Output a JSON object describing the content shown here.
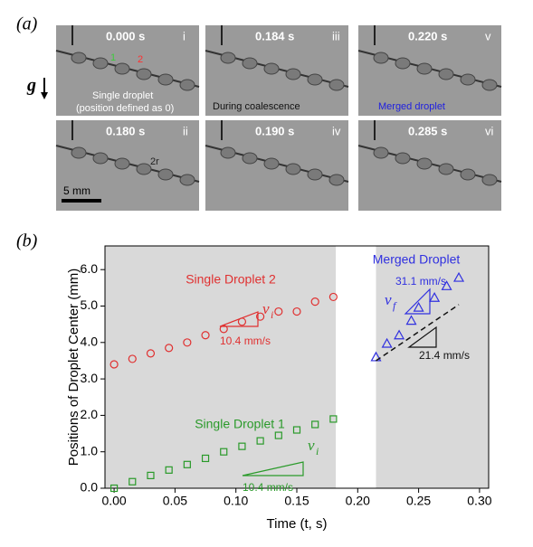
{
  "panel_a": {
    "label": "(a)",
    "gravity": "g",
    "scale_bar": "5 mm",
    "frames": [
      {
        "time": "0.000 s",
        "index": "i",
        "notes": [
          {
            "text": "1",
            "color": "#3ccc3c"
          },
          {
            "text": "2",
            "color": "#ff3030"
          },
          {
            "text": "Single droplet",
            "color": "#ffffff"
          },
          {
            "text": "(position defined as 0)",
            "color": "#ffffff"
          }
        ]
      },
      {
        "time": "0.184 s",
        "index": "iii",
        "notes": [
          {
            "text": "During coalescence",
            "color": "#111111"
          }
        ]
      },
      {
        "time": "0.220 s",
        "index": "v",
        "notes": [
          {
            "text": "Merged droplet",
            "color": "#2020e0"
          }
        ]
      },
      {
        "time": "0.180 s",
        "index": "ii",
        "notes": [
          {
            "text": "2r",
            "color": "#222222"
          }
        ]
      },
      {
        "time": "0.190 s",
        "index": "iv",
        "notes": []
      },
      {
        "time": "0.285 s",
        "index": "vi",
        "notes": []
      }
    ]
  },
  "panel_b_label": "(b)",
  "chart_data": {
    "type": "scatter",
    "x_label": "Time (t, s)",
    "y_label": "Positions of Droplet Center (mm)",
    "xlim": [
      -0.0075,
      0.3075
    ],
    "ylim": [
      0,
      6.65
    ],
    "xticks": [
      {
        "value": 0,
        "label": "0.00"
      },
      {
        "value": 0.05,
        "label": "0.05"
      },
      {
        "value": 0.1,
        "label": "0.10"
      },
      {
        "value": 0.15,
        "label": "0.15"
      },
      {
        "value": 0.2,
        "label": "0.20"
      },
      {
        "value": 0.25,
        "label": "0.25"
      },
      {
        "value": 0.3,
        "label": "0.30"
      }
    ],
    "yticks": [
      {
        "value": 0,
        "label": "0.0"
      },
      {
        "value": 1,
        "label": "1.0"
      },
      {
        "value": 2,
        "label": "2.0"
      },
      {
        "value": 3,
        "label": "3.0"
      },
      {
        "value": 4,
        "label": "4.0"
      },
      {
        "value": 5,
        "label": "5.0"
      },
      {
        "value": 6,
        "label": "6.0"
      }
    ],
    "shaded_regions": [
      [
        -0.0075,
        0.182
      ],
      [
        0.215,
        0.3075
      ]
    ],
    "shade_color": "#d9d9d9",
    "series": [
      {
        "name": "Single Droplet 2",
        "color": "#e03030",
        "marker": "circle",
        "x": [
          0,
          0.015,
          0.03,
          0.045,
          0.06,
          0.075,
          0.09,
          0.105,
          0.12,
          0.135,
          0.15,
          0.165,
          0.18
        ],
        "values": [
          3.4,
          3.55,
          3.7,
          3.85,
          4.0,
          4.2,
          4.37,
          4.57,
          4.71,
          4.85,
          4.85,
          5.12,
          5.25
        ]
      },
      {
        "name": "Single Droplet 1",
        "color": "#2a9a2a",
        "marker": "square",
        "x": [
          0,
          0.015,
          0.03,
          0.045,
          0.06,
          0.075,
          0.09,
          0.105,
          0.12,
          0.135,
          0.15,
          0.165,
          0.18
        ],
        "values": [
          0.0,
          0.18,
          0.35,
          0.5,
          0.65,
          0.82,
          1.0,
          1.15,
          1.3,
          1.45,
          1.6,
          1.75,
          1.9
        ]
      },
      {
        "name": "Merged Droplet",
        "color": "#3030e0",
        "marker": "triangle",
        "x": [
          0.215,
          0.224,
          0.234,
          0.244,
          0.25,
          0.263,
          0.273,
          0.283
        ],
        "values": [
          3.6,
          3.97,
          4.2,
          4.6,
          4.96,
          5.23,
          5.55,
          5.78
        ]
      }
    ],
    "fit_line": {
      "x": [
        0.215,
        0.283
      ],
      "values": [
        3.5,
        5.04
      ],
      "color": "#111111"
    },
    "slopes": [
      {
        "label": "10.4 mm/s",
        "symbol": "v",
        "subscript": "i",
        "color": "#e03030"
      },
      {
        "label": "10.4 mm/s",
        "symbol": "v",
        "subscript": "i",
        "color": "#2a9a2a"
      },
      {
        "label": "31.1 mm/s",
        "symbol": "v",
        "subscript": "f",
        "color": "#3030e0"
      },
      {
        "label": "21.4 mm/s",
        "color": "#111111"
      }
    ]
  }
}
